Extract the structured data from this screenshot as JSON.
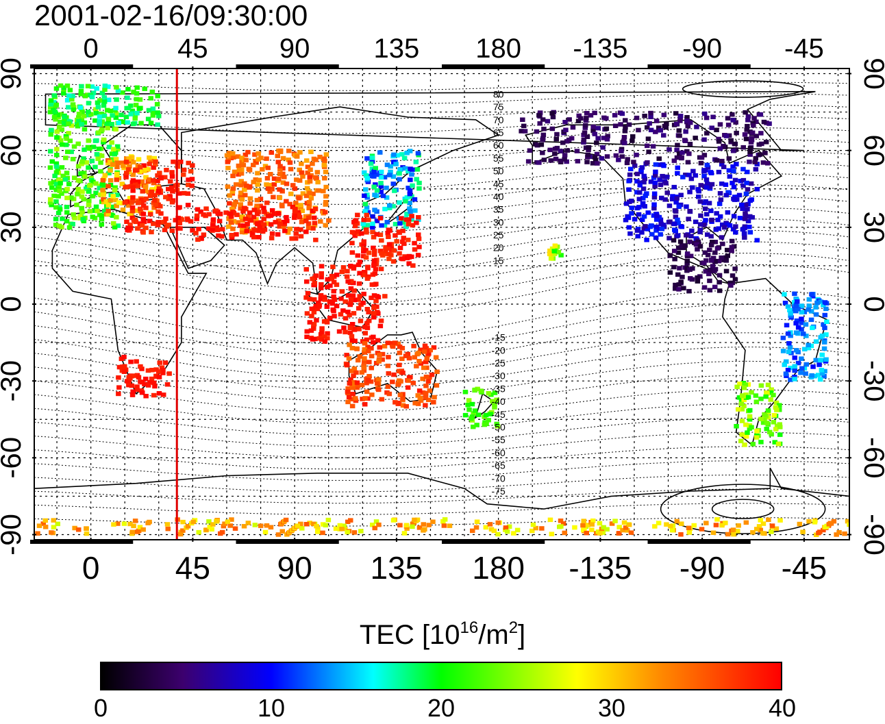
{
  "title": "2001-02-16/09:30:00",
  "x_tick_labels": [
    "0",
    "45",
    "90",
    "135",
    "180",
    "-135",
    "-90",
    "-45"
  ],
  "y_tick_labels": [
    "90",
    "60",
    "30",
    "0",
    "-30",
    "-60",
    "-90"
  ],
  "contour_labels": [
    "80",
    "75",
    "70",
    "65",
    "60",
    "55",
    "50",
    "45",
    "40",
    "35",
    "30",
    "25",
    "20",
    "15",
    "-15",
    "-20",
    "-25",
    "-30",
    "-35",
    "-40",
    "-45",
    "-50",
    "-55",
    "-60",
    "-65",
    "-70",
    "-75"
  ],
  "colorbar": {
    "label_prefix": "TEC  [10",
    "label_exp1": "16",
    "label_mid": "/m",
    "label_exp2": "2",
    "label_suffix": "]",
    "ticks": [
      "0",
      "10",
      "20",
      "30",
      "40"
    ],
    "min": 0,
    "max": 40
  },
  "map": {
    "projection": "equirectangular",
    "lon_range": [
      -25,
      335
    ],
    "lat_range": [
      -92,
      92
    ],
    "marker_longitude": 38,
    "marker_color": "#e00000",
    "grid_spacing_deg": 15
  },
  "tec_regions": [
    {
      "name": "europe-west",
      "lon": [
        -18,
        12
      ],
      "lat": [
        30,
        78
      ],
      "tec_range": [
        18,
        26
      ]
    },
    {
      "name": "europe-central",
      "lon": [
        5,
        30
      ],
      "lat": [
        35,
        58
      ],
      "tec_range": [
        28,
        37
      ]
    },
    {
      "name": "europe-east",
      "lon": [
        15,
        45
      ],
      "lat": [
        28,
        56
      ],
      "tec_range": [
        37,
        40
      ]
    },
    {
      "name": "north-atlantic",
      "lon": [
        -18,
        30
      ],
      "lat": [
        70,
        86
      ],
      "tec_range": [
        16,
        23
      ]
    },
    {
      "name": "central-asia",
      "lon": [
        60,
        105
      ],
      "lat": [
        28,
        60
      ],
      "tec_range": [
        31,
        38
      ]
    },
    {
      "name": "middle-east",
      "lon": [
        45,
        100
      ],
      "lat": [
        25,
        38
      ],
      "tec_range": [
        38,
        40
      ]
    },
    {
      "name": "japan",
      "lon": [
        120,
        145
      ],
      "lat": [
        30,
        60
      ],
      "tec_range": [
        9,
        19
      ]
    },
    {
      "name": "east-asia",
      "lon": [
        115,
        145
      ],
      "lat": [
        15,
        35
      ],
      "tec_range": [
        37,
        40
      ]
    },
    {
      "name": "southeast-asia",
      "lon": [
        95,
        130
      ],
      "lat": [
        -15,
        15
      ],
      "tec_range": [
        38,
        40
      ]
    },
    {
      "name": "africa-south",
      "lon": [
        12,
        35
      ],
      "lat": [
        -36,
        -20
      ],
      "tec_range": [
        38,
        40
      ]
    },
    {
      "name": "australia",
      "lon": [
        112,
        153
      ],
      "lat": [
        -40,
        -15
      ],
      "tec_range": [
        34,
        39
      ]
    },
    {
      "name": "new-zealand",
      "lon": [
        165,
        180
      ],
      "lat": [
        -48,
        -33
      ],
      "tec_range": [
        20,
        25
      ]
    },
    {
      "name": "north-america",
      "lon": [
        -125,
        -65
      ],
      "lat": [
        25,
        55
      ],
      "tec_range": [
        6,
        11
      ]
    },
    {
      "name": "alaska-canada",
      "lon": [
        -170,
        -60
      ],
      "lat": [
        55,
        75
      ],
      "tec_range": [
        2,
        6
      ]
    },
    {
      "name": "central-america",
      "lon": [
        -105,
        -75
      ],
      "lat": [
        5,
        25
      ],
      "tec_range": [
        2,
        5
      ]
    },
    {
      "name": "south-america-east",
      "lon": [
        -55,
        -35
      ],
      "lat": [
        -30,
        5
      ],
      "tec_range": [
        10,
        16
      ]
    },
    {
      "name": "south-america-south",
      "lon": [
        -75,
        -55
      ],
      "lat": [
        -55,
        -30
      ],
      "tec_range": [
        20,
        28
      ]
    },
    {
      "name": "hawaii",
      "lon": [
        -158,
        -152
      ],
      "lat": [
        17,
        25
      ],
      "tec_range": [
        20,
        30
      ]
    },
    {
      "name": "antarctic-band",
      "lon": [
        -25,
        335
      ],
      "lat": [
        -90,
        -84
      ],
      "tec_range": [
        26,
        36
      ]
    }
  ]
}
